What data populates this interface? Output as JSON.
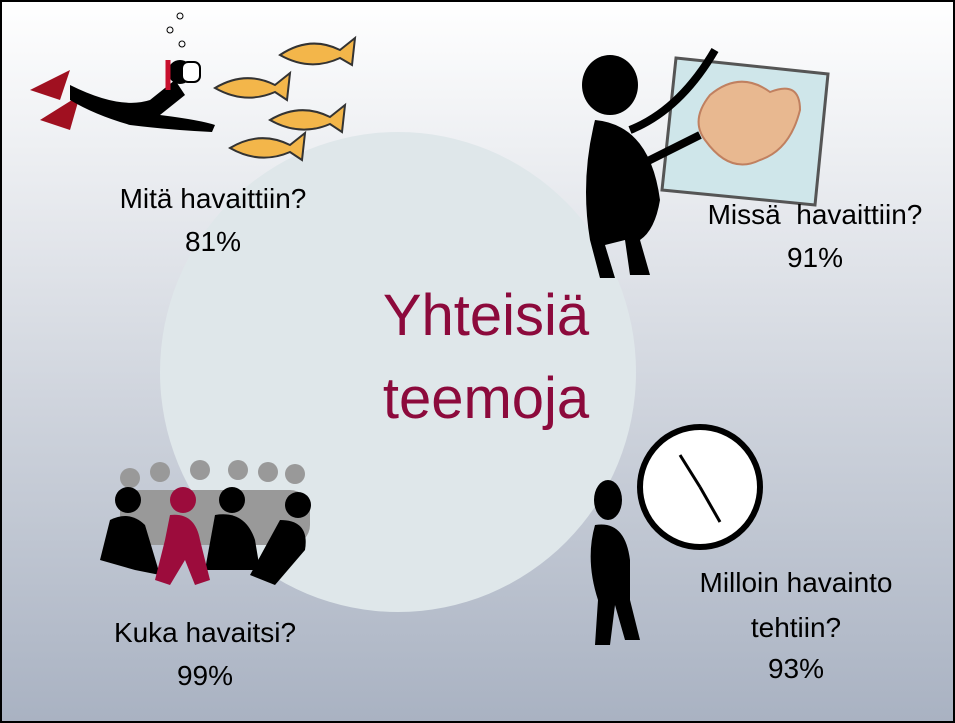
{
  "title": {
    "lines": [
      "Yhteisiä",
      "teemoja"
    ]
  },
  "themes": [
    {
      "lines": [
        "Mitä havaittiin?"
      ],
      "share": "81%"
    },
    {
      "lines": [
        "Missä  havaittiin?"
      ],
      "share": "91%"
    },
    {
      "lines": [
        "Kuka havaitsi?"
      ],
      "share": "99%"
    },
    {
      "lines": [
        "Milloin havainto",
        "tehtiin?"
      ],
      "share": "93%"
    }
  ]
}
